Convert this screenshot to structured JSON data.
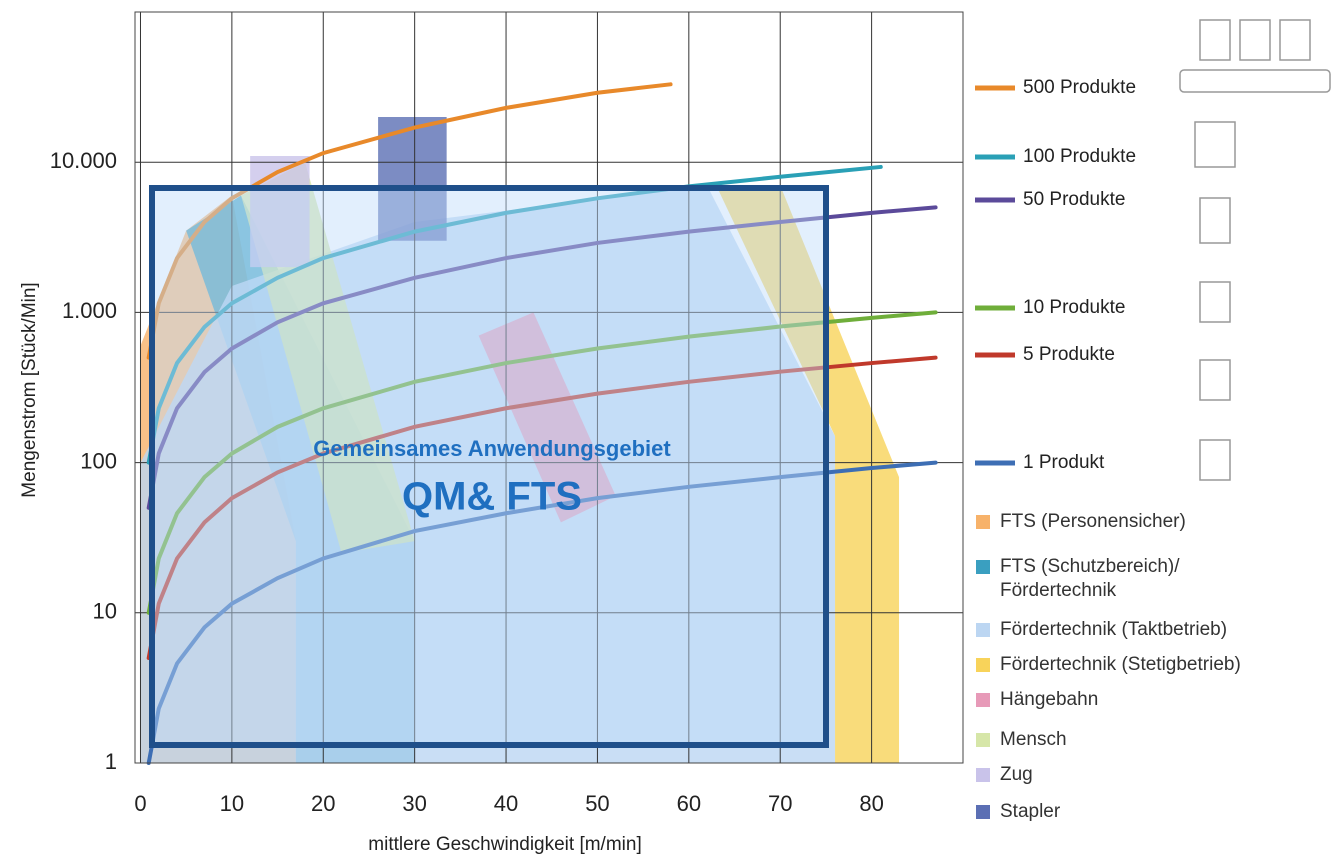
{
  "chart_data": {
    "type": "line",
    "y_scale": "log",
    "xlabel": "mittlere Geschwindigkeit [m/min]",
    "ylabel": "Mengenstrom [Stück/Min]",
    "xlim": [
      -0.6,
      90
    ],
    "ylim": [
      1,
      100000
    ],
    "xticks": [
      0,
      10,
      20,
      30,
      40,
      50,
      60,
      70,
      80
    ],
    "yticks": [
      1,
      10,
      100,
      {
        "value": 1000,
        "label": "1.000"
      },
      {
        "value": 10000,
        "label": "10.000"
      }
    ],
    "grid": true,
    "areas": [
      {
        "name": "FTS (Personensicher)",
        "color": "#f7b26a",
        "x": [
          0,
          0,
          5,
          10,
          17,
          17
        ],
        "y": [
          1,
          600,
          3500,
          6000,
          30,
          1
        ]
      },
      {
        "name": "FTS (Schutzbereich)/\nFördertechnik",
        "color": "#3a9fc0",
        "x": [
          5,
          11,
          30,
          30,
          17,
          17
        ],
        "y": [
          3500,
          6000,
          30,
          1,
          1,
          30
        ]
      },
      {
        "name": "Fördertechnik (Taktbetrieb)",
        "color": "#bcd6f2",
        "x": [
          0,
          0,
          10,
          30,
          62,
          76,
          76
        ],
        "y": [
          1,
          100,
          1500,
          4000,
          7000,
          150,
          1
        ]
      },
      {
        "name": "Fördertechnik (Stetigbetrieb)",
        "color": "#f8d35a",
        "x": [
          63,
          70,
          83,
          83,
          76,
          76
        ],
        "y": [
          7000,
          7000,
          80,
          1,
          1,
          150
        ]
      },
      {
        "name": "Hängebahn",
        "color": "#e79ab8",
        "x": [
          37,
          43,
          52,
          46
        ],
        "y": [
          700,
          1000,
          60,
          40
        ]
      },
      {
        "name": "Mensch",
        "color": "#d6e6a8",
        "x": [
          11,
          18,
          30,
          22
        ],
        "y": [
          6000,
          10000,
          30,
          25
        ]
      },
      {
        "name": "Zug",
        "color": "#c9c3ea",
        "x": [
          12,
          18.5,
          18.5,
          12
        ],
        "y": [
          2000,
          2000,
          11000,
          11000
        ]
      },
      {
        "name": "Stapler",
        "color": "#5b6fb4",
        "x": [
          26,
          33.5,
          33.5,
          26
        ],
        "y": [
          3000,
          3000,
          20000,
          20000
        ]
      }
    ],
    "series": [
      {
        "name": "500 Produkte",
        "color": "#e8892a",
        "x": [
          0.9,
          2,
          4,
          7,
          10,
          15,
          20,
          30,
          40,
          50,
          58
        ],
        "values": [
          500,
          1150,
          2300,
          4000,
          5750,
          8600,
          11500,
          17000,
          23000,
          29000,
          33000
        ]
      },
      {
        "name": "100 Produkte",
        "color": "#2aa0b6",
        "x": [
          0.9,
          2,
          4,
          7,
          10,
          15,
          20,
          30,
          40,
          50,
          60,
          70,
          81
        ],
        "values": [
          100,
          230,
          460,
          800,
          1150,
          1700,
          2300,
          3450,
          4600,
          5750,
          6900,
          8000,
          9300
        ]
      },
      {
        "name": "50 Produkte",
        "color": "#5b4a9a",
        "x": [
          0.9,
          2,
          4,
          7,
          10,
          15,
          20,
          30,
          40,
          50,
          60,
          70,
          80,
          87
        ],
        "values": [
          50,
          115,
          230,
          400,
          575,
          860,
          1150,
          1700,
          2300,
          2900,
          3450,
          4000,
          4600,
          5000
        ]
      },
      {
        "name": "10 Produkte",
        "color": "#6fae3a",
        "x": [
          0.9,
          2,
          4,
          7,
          10,
          15,
          20,
          30,
          40,
          50,
          60,
          70,
          80,
          87
        ],
        "values": [
          10,
          23,
          46,
          80,
          115,
          173,
          230,
          345,
          460,
          575,
          690,
          805,
          920,
          1000
        ]
      },
      {
        "name": "5 Produkte",
        "color": "#c0392b",
        "x": [
          0.9,
          2,
          4,
          7,
          10,
          15,
          20,
          30,
          40,
          50,
          60,
          70,
          80,
          87
        ],
        "values": [
          5,
          11.5,
          23,
          40,
          58,
          86,
          115,
          173,
          230,
          288,
          345,
          403,
          460,
          500
        ]
      },
      {
        "name": "1 Produkt",
        "color": "#3d6eb4",
        "x": [
          0.9,
          2,
          4,
          7,
          10,
          15,
          20,
          30,
          40,
          50,
          60,
          70,
          80,
          87
        ],
        "values": [
          1,
          2.3,
          4.6,
          8,
          11.5,
          17,
          23,
          35,
          46,
          58,
          69,
          80,
          92,
          100
        ]
      }
    ],
    "annotations": [
      "Gemeinsames Anwendungsgebiet",
      "QM& FTS"
    ]
  }
}
